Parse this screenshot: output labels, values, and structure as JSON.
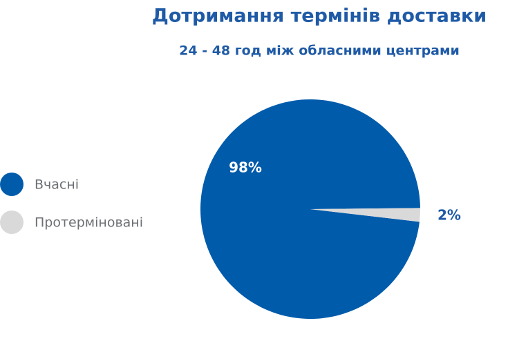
{
  "chart_data": {
    "type": "pie",
    "title": "Дотримання термінів доставки",
    "subtitle": "24 - 48 год між обласними центрами",
    "categories": [
      "Вчасні",
      "Протерміновані"
    ],
    "values": [
      98,
      2
    ],
    "value_labels": [
      "98%",
      "2%"
    ],
    "colors": [
      "#005bab",
      "#d9d9d9"
    ],
    "legend": "left"
  }
}
